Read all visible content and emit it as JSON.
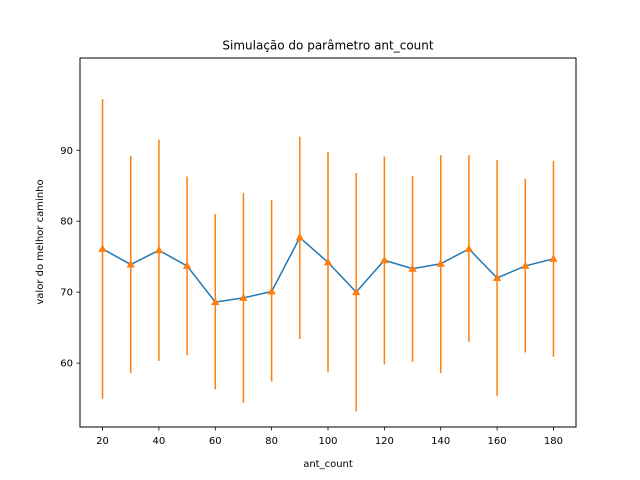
{
  "chart_data": {
    "type": "line",
    "title": "Simulação do parâmetro ant_count",
    "xlabel": "ant_count",
    "ylabel": "valor do melhor caminho",
    "xlim": [
      12,
      188
    ],
    "ylim": [
      51,
      103
    ],
    "xticks": [
      20,
      40,
      60,
      80,
      100,
      120,
      140,
      160,
      180
    ],
    "yticks": [
      60,
      70,
      80,
      90
    ],
    "grid": false,
    "series": [
      {
        "x": [
          20,
          30,
          40,
          50,
          60,
          70,
          80,
          90,
          100,
          110,
          120,
          130,
          140,
          150,
          160,
          170,
          180
        ],
        "y": [
          76.1,
          73.9,
          75.9,
          73.7,
          68.6,
          69.2,
          70.1,
          77.7,
          74.2,
          70.0,
          74.5,
          73.3,
          74.0,
          76.1,
          72.0,
          73.7,
          74.7
        ],
        "lower": [
          55.0,
          58.6,
          60.3,
          61.1,
          56.3,
          54.4,
          57.4,
          63.4,
          58.7,
          53.2,
          59.8,
          60.2,
          58.6,
          63.0,
          55.4,
          61.5,
          60.9
        ],
        "upper": [
          97.2,
          89.2,
          91.5,
          86.3,
          81.0,
          84.0,
          83.0,
          91.9,
          89.8,
          86.8,
          89.1,
          86.4,
          89.3,
          89.3,
          88.6,
          86.0,
          88.5
        ],
        "line_color": "#1f77b4",
        "marker_color": "#ff7f0e",
        "errorbar_color": "#ff7f0e",
        "marker": "triangle"
      }
    ]
  }
}
